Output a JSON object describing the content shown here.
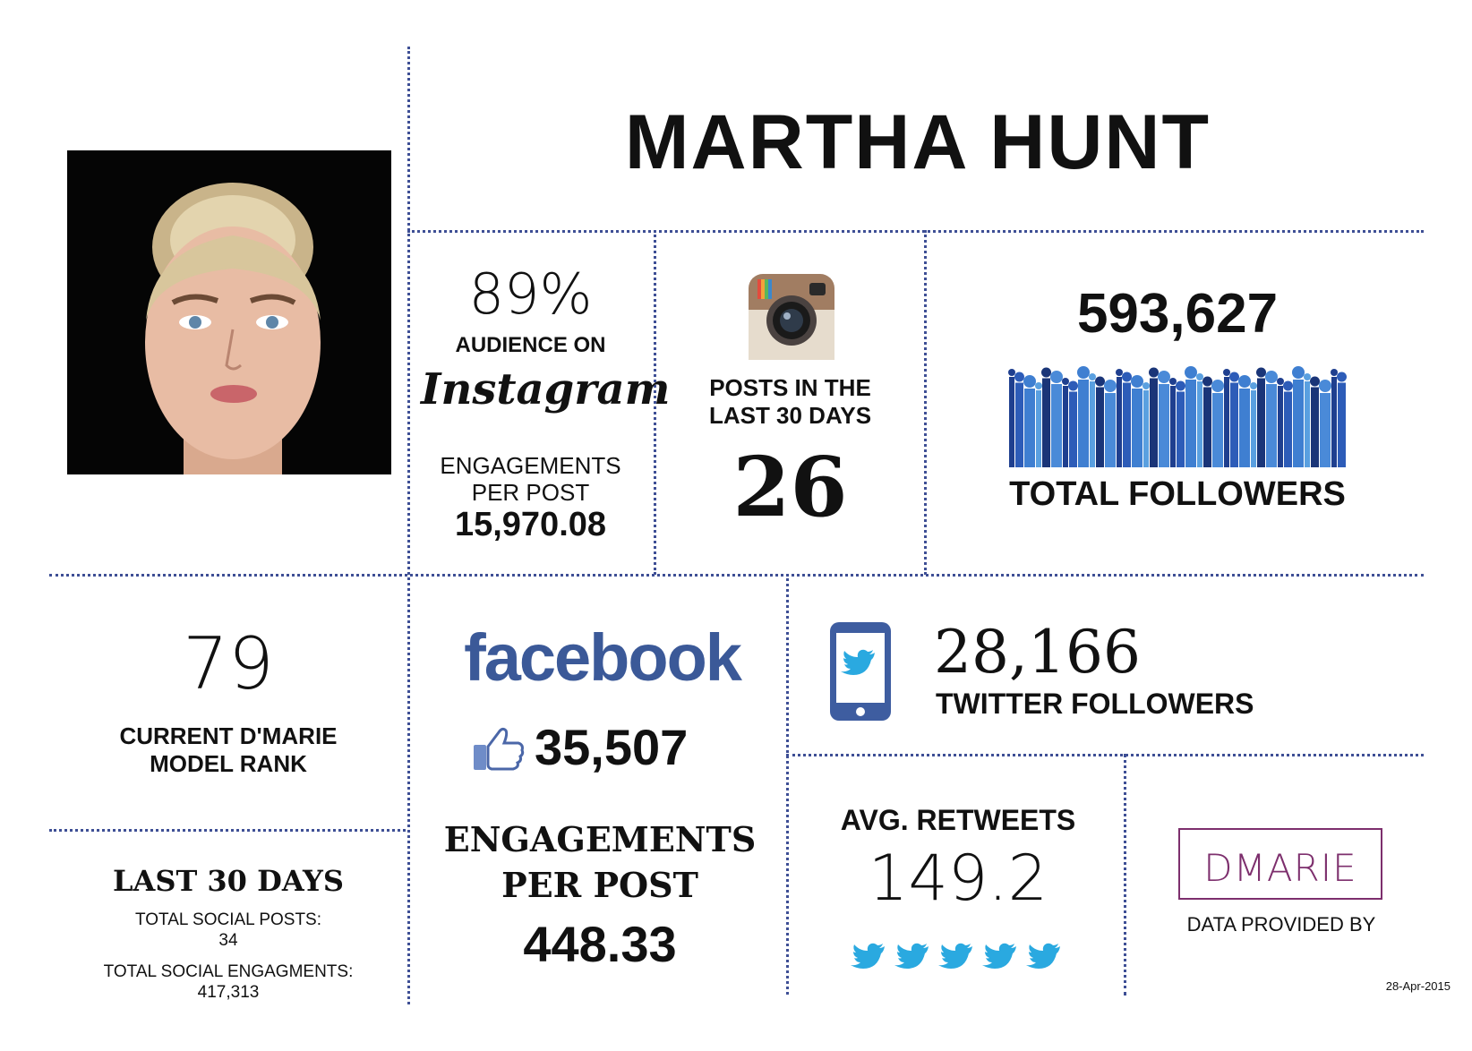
{
  "name": "MARTHA HUNT",
  "audience": {
    "percent": "89%",
    "label": "AUDIENCE ON",
    "platform": "Instagram",
    "engagements_label_1": "ENGAGEMENTS",
    "engagements_label_2": "PER POST",
    "engagements_value": "15,970.08"
  },
  "posts": {
    "label_1": "POSTS IN THE",
    "label_2": "LAST 30 DAYS",
    "value": "26",
    "icon": "instagram-camera-icon"
  },
  "total_followers": {
    "value": "593,627",
    "label": "TOTAL FOLLOWERS",
    "icon": "crowd-bars-icon"
  },
  "rank": {
    "value": "79",
    "label_1": "CURRENT D'MARIE",
    "label_2": "MODEL RANK"
  },
  "last30": {
    "title": "LAST 30 DAYS",
    "posts_label": "TOTAL SOCIAL POSTS:",
    "posts_value": "34",
    "engagements_label": "TOTAL SOCIAL ENGAGMENTS:",
    "engagements_value": "417,313"
  },
  "facebook": {
    "logo": "facebook",
    "likes": "35,507",
    "engagements_label_1": "ENGAGEMENTS",
    "engagements_label_2": "PER POST",
    "engagements_value": "448.33",
    "brand_color": "#3b5998"
  },
  "twitter": {
    "followers_value": "28,166",
    "followers_label": "TWITTER FOLLOWERS",
    "retweets_label": "AVG. RETWEETS",
    "retweets_value": "149.2",
    "bird_count": 5,
    "brand_color": "#2aa9e0",
    "phone_color": "#3e5da0"
  },
  "provider": {
    "logo_text": "DMARIE",
    "label": "DATA PROVIDED BY",
    "logo_color": "#7d2f6d"
  },
  "date": "28-Apr-2015",
  "colors": {
    "divider": "#3e4f95"
  }
}
